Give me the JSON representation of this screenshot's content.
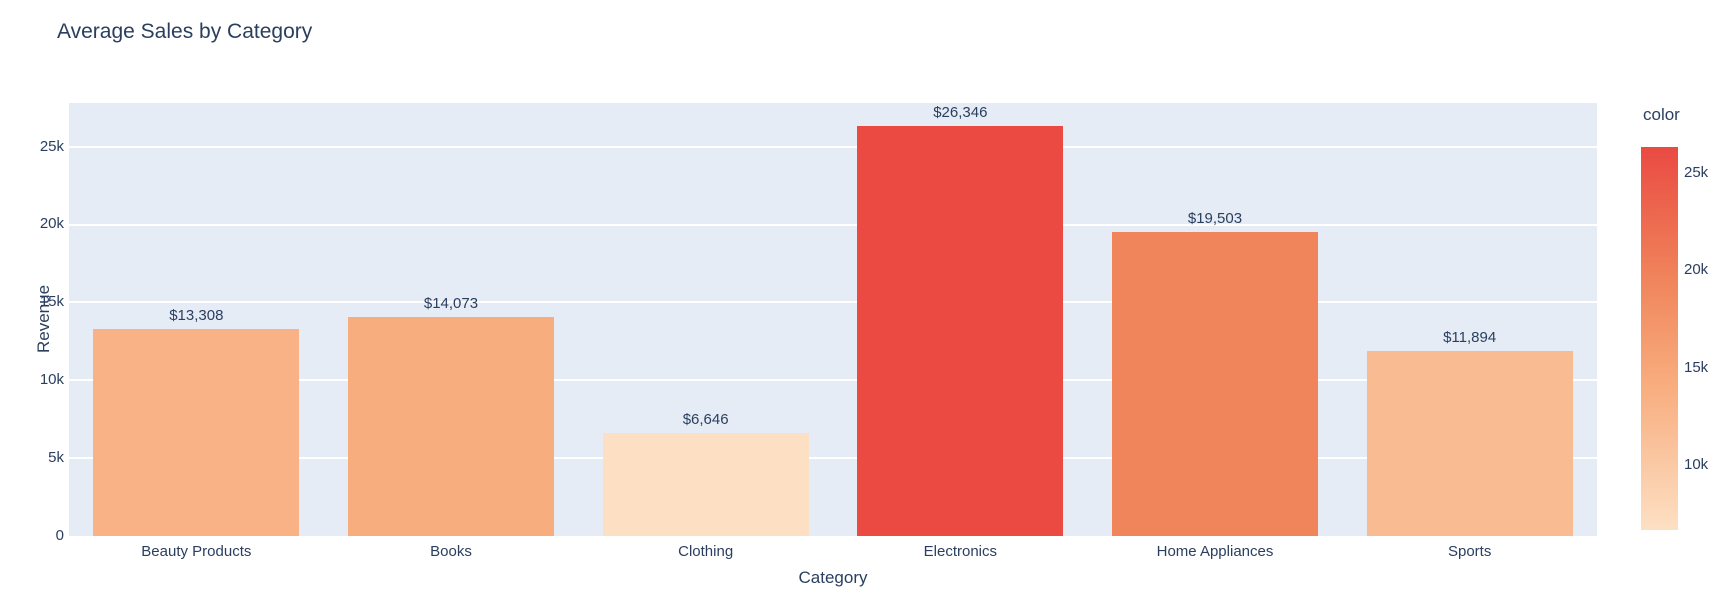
{
  "title": "Average Sales by Category",
  "axes": {
    "x_title": "Category",
    "y_title": "Revenue",
    "y_ticks": [
      {
        "label": "0",
        "value": 0
      },
      {
        "label": "5k",
        "value": 5000
      },
      {
        "label": "10k",
        "value": 10000
      },
      {
        "label": "15k",
        "value": 15000
      },
      {
        "label": "20k",
        "value": 20000
      },
      {
        "label": "25k",
        "value": 25000
      }
    ]
  },
  "colorbar": {
    "title": "color",
    "ticks": [
      {
        "label": "25k",
        "value": 25000
      },
      {
        "label": "20k",
        "value": 20000
      },
      {
        "label": "15k",
        "value": 15000
      },
      {
        "label": "10k",
        "value": 10000
      }
    ],
    "gradient_stops": [
      "#ea4a42 0%",
      "#f0855c 35%",
      "#f8ad7e 62%",
      "#f9bb92 73%",
      "#fde0c3 100%"
    ]
  },
  "colors": {
    "paper_bg": "#ffffff",
    "plot_bg": "#e5ecf6",
    "grid": "#ffffff",
    "text": "#2a3f5f"
  },
  "chart_data": {
    "type": "bar",
    "title": "Average Sales by Category",
    "xlabel": "Category",
    "ylabel": "Revenue",
    "categories": [
      "Beauty Products",
      "Books",
      "Clothing",
      "Electronics",
      "Home Appliances",
      "Sports"
    ],
    "values": [
      13308,
      14073,
      6646,
      26346,
      19503,
      11894
    ],
    "value_labels": [
      "$13,308",
      "$14,073",
      "$6,646",
      "$26,346",
      "$19,503",
      "$11,894"
    ],
    "bar_colors": [
      "#f8b286",
      "#f8ad7e",
      "#fde0c3",
      "#ea4a42",
      "#f0855c",
      "#f9bb92"
    ],
    "ylim": [
      0,
      27800
    ],
    "y_tick_labels": [
      "0",
      "5k",
      "10k",
      "15k",
      "20k",
      "25k"
    ],
    "grid": true,
    "legend_position": "colorbar-right",
    "colorbar": {
      "title": "color",
      "min": 6646,
      "max": 26346,
      "tick_labels": [
        "10k",
        "15k",
        "20k",
        "25k"
      ]
    }
  }
}
